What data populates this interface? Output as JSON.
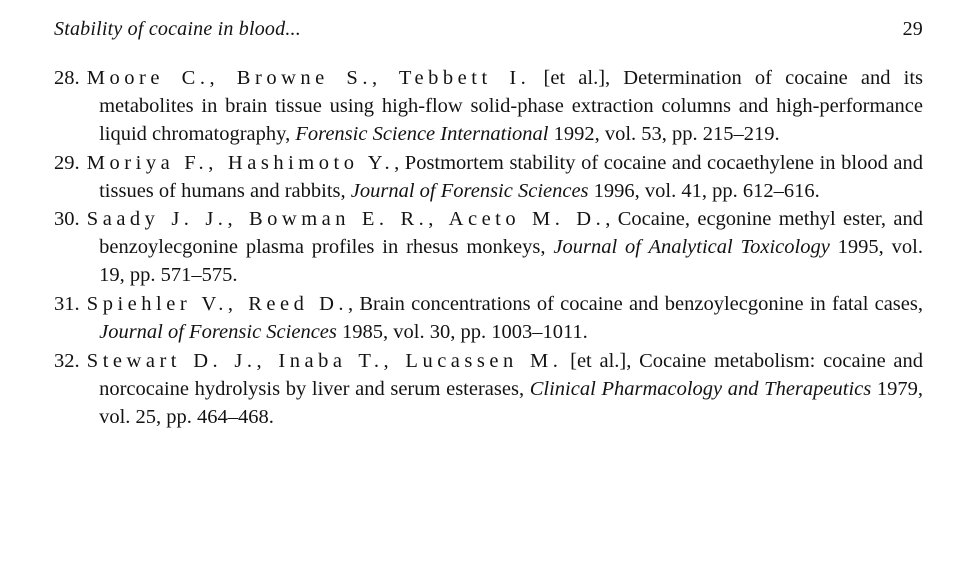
{
  "header": {
    "running_title": "Stability of cocaine in blood...",
    "page_number": "29"
  },
  "refs": [
    {
      "num": "28.",
      "authors": "Moore C., Browne S., Tebbett I.",
      "after_authors": " [et al.], Determination of cocaine and its metabolites in brain tissue using high-flow solid-phase extraction columns and high-performance liquid chromatography, ",
      "journal": "Forensic Science International",
      "tail": " 1992, vol. 53, pp. 215–219."
    },
    {
      "num": "29.",
      "authors": "Moriya F., Hashimoto Y.",
      "after_authors": ", Postmortem stability of cocaine and cocaethylene in blood and tissues of humans and rabbits, ",
      "journal": "Journal of Forensic Sciences",
      "tail": " 1996, vol. 41, pp. 612–616."
    },
    {
      "num": "30.",
      "authors": "Saady J. J., Bowman E. R., Aceto M. D.",
      "after_authors": ", Cocaine, ecgonine methyl ester, and benzoylecgonine plasma profiles in rhesus monkeys, ",
      "journal": "Journal of Analytical Toxicology",
      "tail": " 1995, vol. 19, pp. 571–575."
    },
    {
      "num": "31.",
      "authors": "Spiehler V., Reed D.",
      "after_authors": ", Brain concentrations of cocaine and benzoylecgonine in fatal cases, ",
      "journal": "Journal of Forensic Sciences",
      "tail": " 1985, vol. 30, pp. 1003–1011."
    },
    {
      "num": "32.",
      "authors": "Stewart D. J., Inaba T., Lucassen M.",
      "after_authors": " [et al.], Cocaine metabolism: cocaine and norcocaine hydrolysis by liver and serum esterases, ",
      "journal": "Clinical Pharmacology and Therapeutics",
      "tail": " 1979, vol. 25, pp. 464–468."
    }
  ]
}
